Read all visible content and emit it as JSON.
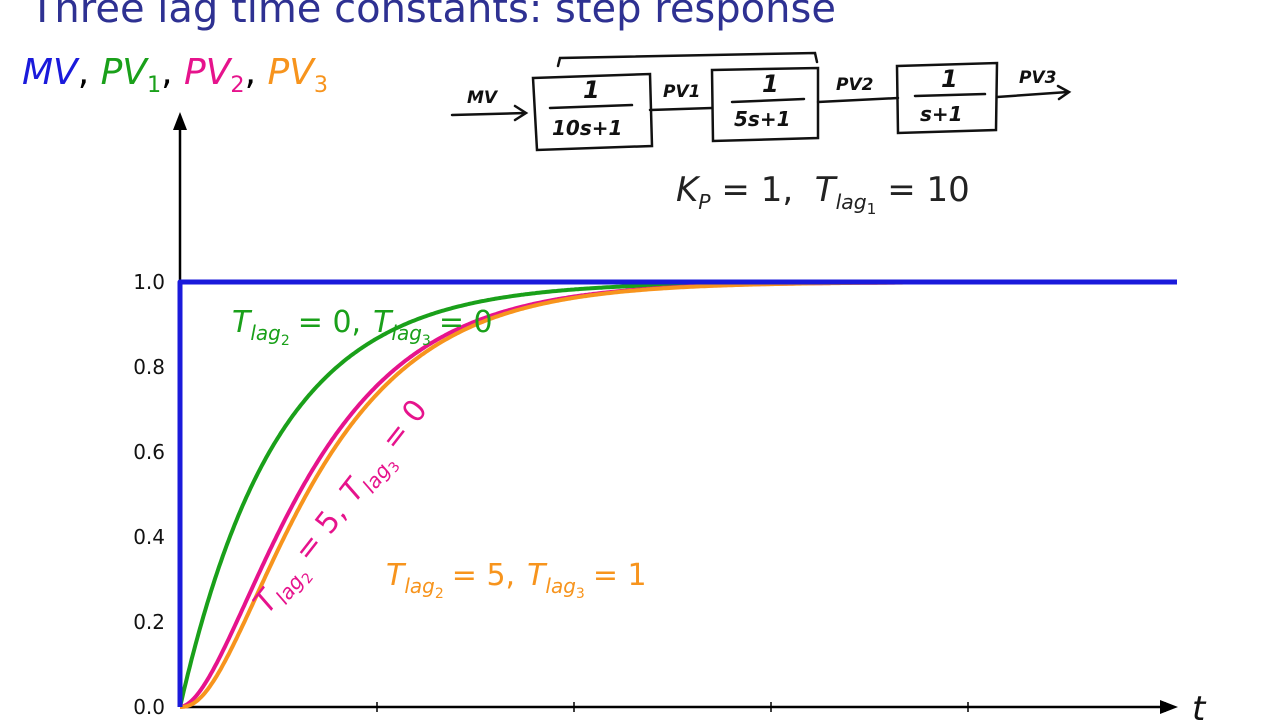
{
  "title": "Three lag time constants: step response",
  "legend": {
    "mv": {
      "text": "MV",
      "color": "#1a1adb"
    },
    "pv1": {
      "base": "PV",
      "sub": "1",
      "color": "#1aa01a"
    },
    "pv2": {
      "base": "PV",
      "sub": "2",
      "color": "#e6138c"
    },
    "pv3": {
      "base": "PV",
      "sub": "3",
      "color": "#f7941d"
    },
    "separator": ","
  },
  "params": {
    "kp_sym": "K",
    "kp_sub": "P",
    "kp_val": "= 1,",
    "tlag_sym": "T",
    "tlag_sub": "lag",
    "tlag_subsub": "1",
    "tlag_val": "= 10"
  },
  "block_diagram": {
    "input": "MV",
    "blocks": [
      {
        "num": "1",
        "den": "10s+1",
        "out": "PV1"
      },
      {
        "num": "1",
        "den": "5s+1",
        "out": "PV2"
      },
      {
        "num": "1",
        "den": "s+1",
        "out": "PV3"
      }
    ]
  },
  "chart_data": {
    "type": "line",
    "xlabel": "t",
    "ylabel": "",
    "yticks": [
      "0.0",
      "0.2",
      "0.4",
      "0.6",
      "0.8",
      "1.0"
    ],
    "ylim": [
      0,
      1.0
    ],
    "xlim": [
      0,
      100
    ],
    "grid": false,
    "series": [
      {
        "name": "MV",
        "color": "#1a1adb",
        "model": "step",
        "t_step": 0,
        "gain": 1
      },
      {
        "name": "PV1",
        "color": "#1aa01a",
        "model": "lags",
        "lags": [
          10
        ]
      },
      {
        "name": "PV2",
        "color": "#e6138c",
        "model": "lags",
        "lags": [
          10,
          5
        ]
      },
      {
        "name": "PV3",
        "color": "#f7941d",
        "model": "lags",
        "lags": [
          10,
          5,
          1
        ]
      }
    ],
    "annotations": {
      "pv1": {
        "t": "T",
        "a_sub": "lag",
        "a_subsub": "2",
        "a_val": "= 0,",
        "b_sub": "lag",
        "b_subsub": "3",
        "b_val": "= 0"
      },
      "pv2": {
        "t": "T",
        "a_sub": "lag",
        "a_subsub": "2",
        "a_val": "= 5,",
        "b_sub": "lag",
        "b_subsub": "3",
        "b_val": "= 0"
      },
      "pv3": {
        "t": "T",
        "a_sub": "lag",
        "a_subsub": "2",
        "a_val": "= 5,",
        "b_sub": "lag",
        "b_subsub": "3",
        "b_val": "= 1"
      }
    }
  }
}
